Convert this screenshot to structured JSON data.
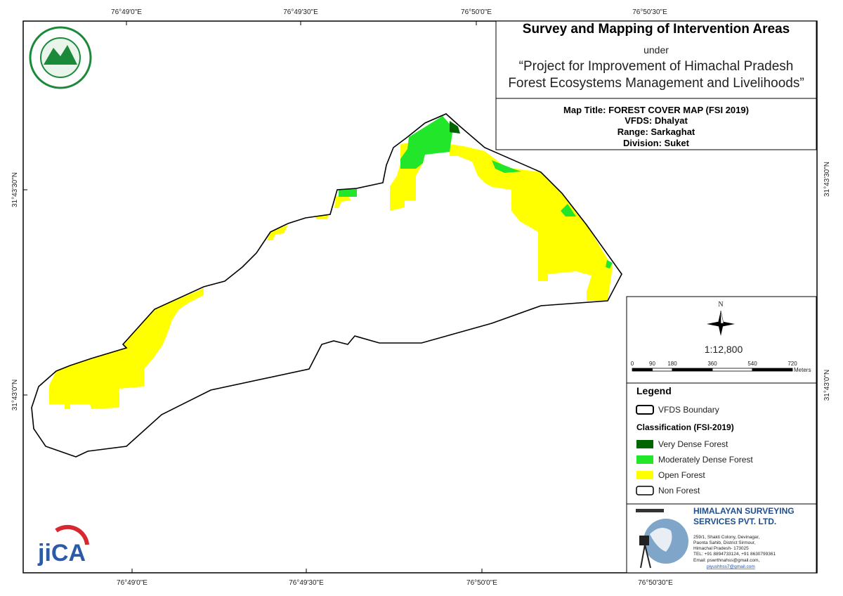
{
  "graticule": {
    "top": [
      "76°49'0\"E",
      "76°49'30\"E",
      "76°50'0\"E",
      "76°50'30\"E"
    ],
    "bottom": [
      "76°49'0\"E",
      "76°49'30\"E",
      "76°50'0\"E",
      "76°50'30\"E"
    ],
    "left": [
      "31°43'30\"N",
      "31°43'0\"N"
    ],
    "right": [
      "31°43'30\"N",
      "31°43'0\"N"
    ]
  },
  "title_block": {
    "title": "Survey and Mapping of Intervention Areas",
    "under": "under",
    "project": [
      "“Project for Improvement of Himachal Pradesh",
      "Forest Ecosystems Management and Livelihoods”"
    ]
  },
  "map_info": [
    "Map Title: FOREST COVER MAP (FSI 2019)",
    "VFDS: Dhalyat",
    "Range: Sarkaghat",
    "Division: Suket"
  ],
  "scale": {
    "north": "N",
    "ratio": "1:12,800",
    "ticks": [
      0,
      90,
      180,
      360,
      540,
      720
    ],
    "unit": "Meters"
  },
  "legend": {
    "title": "Legend",
    "boundary": "VFDS Boundary",
    "classification_title": "Classification (FSI-2019)",
    "classes": [
      {
        "label": "Very Dense Forest",
        "color": "#006400"
      },
      {
        "label": "Moderately Dense Forest",
        "color": "#22e62a"
      },
      {
        "label": "Open Forest",
        "color": "#ffff00"
      },
      {
        "label": "Non Forest",
        "color": "#ffffff"
      }
    ]
  },
  "company": {
    "name": [
      "HIMALAYAN SURVEYING",
      "SERVICES PVT. LTD."
    ],
    "address": [
      "259/1, Shakti Colony, Devinagar,",
      "Paonta Sahib, District Sirmour,",
      "Himachal Pradesh- 173025",
      "TEL: +91 8894733124, +91 8630799361",
      "Email: pswrthnahss@gmail.com,",
      "piyushhss7@gmail.com"
    ]
  },
  "logo": {
    "jica": "jiCA"
  }
}
